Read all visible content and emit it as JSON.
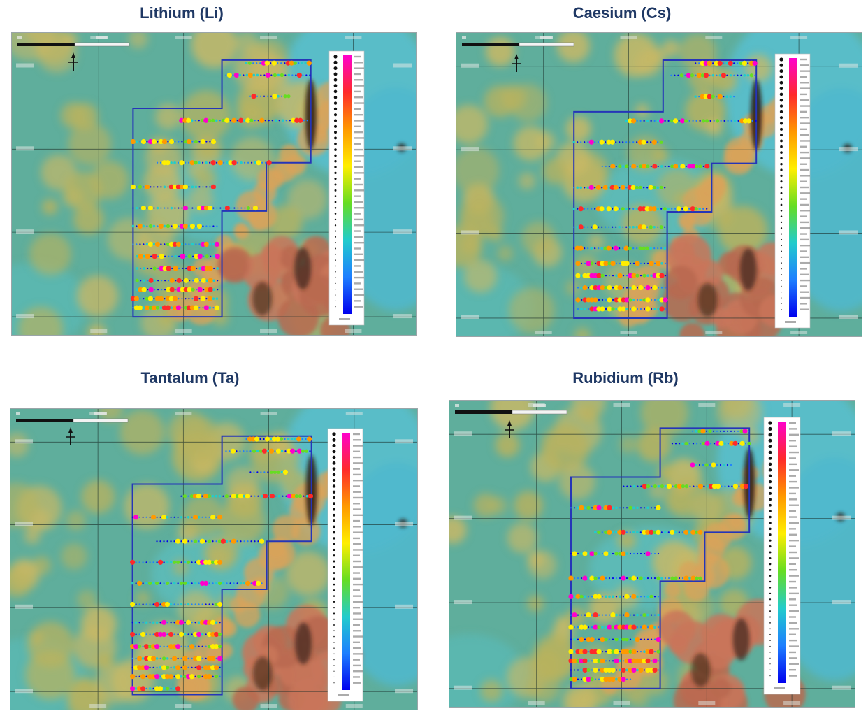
{
  "titles": {
    "lithium": "Lithium (Li)",
    "caesium": "Caesium (Cs)",
    "tantalum": "Tantalum (Ta)",
    "rubidium": "Rubidium (Rb)"
  },
  "colors": {
    "title": "#1f3864",
    "boundary": "#2535b8",
    "ramp": [
      "#ff00cc",
      "#ff2a2a",
      "#ff9900",
      "#ffee00",
      "#66dd22",
      "#22cccc",
      "#1e7fff",
      "#0000ee"
    ]
  },
  "icons": [
    "north-arrow-icon",
    "scale-bar-icon",
    "cursor-icon"
  ]
}
